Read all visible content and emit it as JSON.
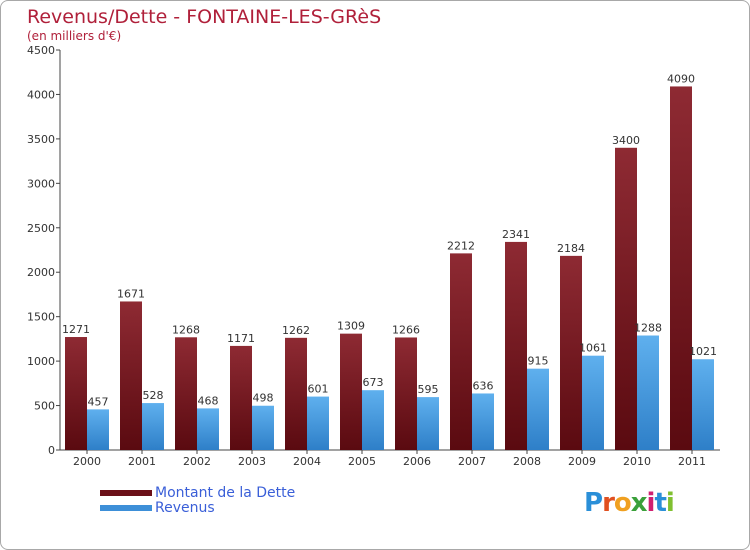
{
  "header": {
    "title": "Revenus/Dette - FONTAINE-LES-GRèS",
    "subtitle": "(en milliers d'€)"
  },
  "chart_data": {
    "type": "bar",
    "categories": [
      "2000",
      "2001",
      "2002",
      "2003",
      "2004",
      "2005",
      "2006",
      "2007",
      "2008",
      "2009",
      "2010",
      "2011"
    ],
    "series": [
      {
        "name": "Montant de la Dette",
        "color": "#7a1a22",
        "values": [
          1271,
          1671,
          1268,
          1171,
          1262,
          1309,
          1266,
          2212,
          2341,
          2184,
          3400,
          4090
        ]
      },
      {
        "name": "Revenus",
        "color": "#3d8fd8",
        "values": [
          457,
          528,
          468,
          498,
          601,
          673,
          595,
          636,
          915,
          1061,
          1288,
          1021
        ]
      }
    ],
    "ylim": [
      0,
      4500
    ],
    "yticks": [
      0,
      500,
      1000,
      1500,
      2000,
      2500,
      3000,
      3500,
      4000,
      4500
    ],
    "grid": false,
    "legend_position": "bottom-left"
  },
  "legend": {
    "debt_label": "Montant de la Dette",
    "revenue_label": "Revenus"
  },
  "logo": {
    "letters": [
      "P",
      "r",
      "o",
      "x",
      "i",
      "t",
      "i"
    ],
    "colors": [
      "#2a8fd8",
      "#e05020",
      "#f0a020",
      "#3aa03a",
      "#d02070",
      "#2a8fd8",
      "#80c030"
    ]
  }
}
